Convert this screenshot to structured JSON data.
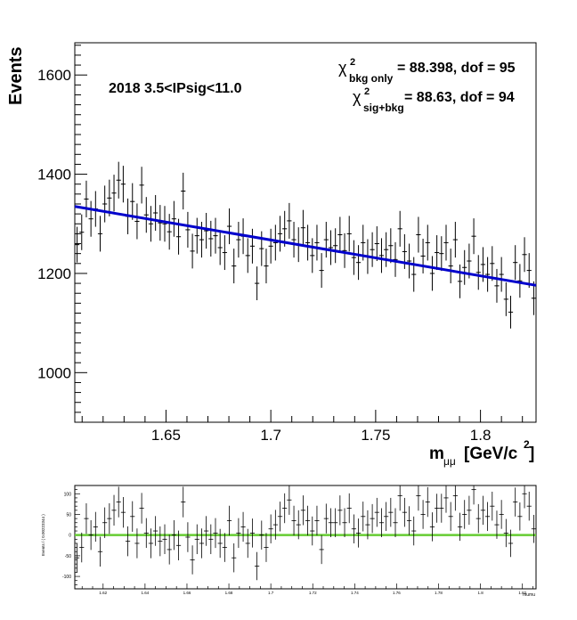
{
  "chart_data": [
    {
      "type": "scatter",
      "title": "2018 3.5<IPsig<11.0",
      "ylabel": "Events",
      "xlabel_main": "m",
      "xlabel_sub": "μμ",
      "xlabel_unit": "[GeV/c",
      "xlabel_sup": "2",
      "xlabel_end": "]",
      "chi2_bkg": {
        "symbol": "χ",
        "sup": "2",
        "sub": "bkg only",
        "text": "= 88.398, dof = 95"
      },
      "chi2_sig": {
        "symbol": "χ",
        "sup": "2",
        "sub": "sig+bkg",
        "text": "= 88.63, dof = 94"
      },
      "xlim": [
        1.6065,
        1.8265
      ],
      "ylim": [
        900,
        1665
      ],
      "xticks": [
        "1.65",
        "1.7",
        "1.75",
        "1.8"
      ],
      "yticks": [
        "1000",
        "1200",
        "1400",
        "1600"
      ],
      "bin_width": 0.0022,
      "series": [
        {
          "color": "#0000cc",
          "x": [
            1.6076,
            1.6098,
            1.612,
            1.6142,
            1.6164,
            1.6186,
            1.6208,
            1.623,
            1.6252,
            1.6274,
            1.6296,
            1.6318,
            1.634,
            1.6362,
            1.6384,
            1.6406,
            1.6428,
            1.645,
            1.6472,
            1.6494,
            1.6516,
            1.6538,
            1.656,
            1.6582,
            1.6604,
            1.6626,
            1.6648,
            1.667,
            1.6692,
            1.6714,
            1.6736,
            1.6758,
            1.678,
            1.6802,
            1.6824,
            1.6846,
            1.6868,
            1.689,
            1.6912,
            1.6934,
            1.6956,
            1.6978,
            1.7,
            1.7022,
            1.7044,
            1.7066,
            1.7088,
            1.711,
            1.7132,
            1.7154,
            1.7176,
            1.7198,
            1.722,
            1.7242,
            1.7264,
            1.7286,
            1.7308,
            1.733,
            1.7352,
            1.7374,
            1.7396,
            1.7418,
            1.744,
            1.7462,
            1.7484,
            1.7506,
            1.7528,
            1.755,
            1.7572,
            1.7594,
            1.7616,
            1.7638,
            1.766,
            1.7682,
            1.7704,
            1.7726,
            1.7748,
            1.777,
            1.7792,
            1.7814,
            1.7836,
            1.7858,
            1.788,
            1.7902,
            1.7924,
            1.7946,
            1.7968,
            1.799,
            1.8012,
            1.8034,
            1.8056,
            1.8078,
            1.81,
            1.8122,
            1.8144,
            1.8166,
            1.8188,
            1.821,
            1.8232,
            1.8254
          ],
          "y": [
            1258,
            1283,
            1350,
            1310,
            1330,
            1280,
            1340,
            1352,
            1362,
            1388,
            1380,
            1315,
            1345,
            1305,
            1378,
            1318,
            1300,
            1322,
            1302,
            1300,
            1284,
            1310,
            1274,
            1366,
            1288,
            1245,
            1276,
            1268,
            1286,
            1270,
            1276,
            1252,
            1242,
            1295,
            1215,
            1268,
            1275,
            1236,
            1255,
            1180,
            1250,
            1215,
            1255,
            1262,
            1280,
            1290,
            1306,
            1268,
            1258,
            1292,
            1262,
            1236,
            1262,
            1206,
            1268,
            1252,
            1256,
            1278,
            1246,
            1280,
            1232,
            1222,
            1262,
            1234,
            1248,
            1260,
            1236,
            1248,
            1256,
            1228,
            1290,
            1244,
            1225,
            1198,
            1278,
            1235,
            1262,
            1200,
            1242,
            1240,
            1262,
            1215,
            1268,
            1184,
            1212,
            1225,
            1275,
            1202,
            1218,
            1198,
            1220,
            1175,
            1198,
            1148,
            1122,
            1222,
            1185,
            1238,
            1206,
            1150
          ],
          "errors": [
            36,
            36,
            37,
            36,
            36,
            36,
            37,
            37,
            37,
            37,
            37,
            36,
            37,
            36,
            37,
            36,
            36,
            36,
            36,
            36,
            36,
            36,
            36,
            37,
            36,
            35,
            36,
            36,
            36,
            36,
            36,
            35,
            35,
            36,
            35,
            36,
            36,
            35,
            35,
            34,
            35,
            35,
            35,
            36,
            36,
            36,
            36,
            36,
            35,
            36,
            36,
            35,
            36,
            35,
            36,
            35,
            35,
            36,
            35,
            36,
            35,
            35,
            36,
            35,
            35,
            35,
            35,
            35,
            35,
            35,
            36,
            35,
            35,
            35,
            36,
            35,
            36,
            35,
            35,
            35,
            36,
            35,
            36,
            34,
            35,
            35,
            36,
            35,
            35,
            35,
            35,
            34,
            35,
            34,
            33,
            35,
            34,
            35,
            35,
            34
          ],
          "fit_line": {
            "x": [
              1.6065,
              1.8265
            ],
            "y": [
              1335,
              1176
            ]
          }
        }
      ]
    },
    {
      "type": "scatter",
      "ylabel": "Events / ( 0.00223344 )",
      "xlabel": "mumu",
      "xlim": [
        1.6065,
        1.8265
      ],
      "ylim": [
        -130,
        120
      ],
      "yticks": [
        "100",
        "50",
        "0",
        "-50",
        "-100"
      ],
      "xticks": [
        "1.62",
        "1.64",
        "1.66",
        "1.68",
        "1.7",
        "1.72",
        "1.74",
        "1.76",
        "1.78",
        "1.8",
        "1.82"
      ],
      "fit_line_color": "#66cc33",
      "residuals": [
        -55,
        -30,
        40,
        0,
        20,
        -40,
        30,
        40,
        60,
        80,
        55,
        -15,
        45,
        -20,
        65,
        5,
        -20,
        10,
        -15,
        -10,
        -35,
        0,
        -25,
        80,
        -5,
        -60,
        -10,
        -20,
        10,
        -10,
        5,
        -20,
        -30,
        35,
        -55,
        5,
        20,
        -20,
        5,
        -75,
        0,
        -30,
        15,
        25,
        45,
        65,
        85,
        35,
        25,
        60,
        35,
        10,
        35,
        -35,
        40,
        30,
        30,
        60,
        30,
        65,
        15,
        5,
        45,
        25,
        40,
        55,
        30,
        45,
        55,
        30,
        95,
        55,
        35,
        10,
        95,
        50,
        80,
        20,
        65,
        65,
        90,
        45,
        95,
        20,
        50,
        60,
        110,
        40,
        60,
        45,
        70,
        25,
        50,
        5,
        -20,
        80,
        45,
        100,
        70,
        15
      ],
      "residual_errors": [
        36,
        36,
        37,
        36,
        36,
        36,
        37,
        37,
        37,
        37,
        37,
        36,
        37,
        36,
        37,
        36,
        36,
        36,
        36,
        36,
        36,
        36,
        36,
        37,
        36,
        35,
        36,
        36,
        36,
        36,
        36,
        35,
        35,
        36,
        35,
        36,
        36,
        35,
        35,
        34,
        35,
        35,
        35,
        36,
        36,
        36,
        36,
        36,
        35,
        36,
        36,
        35,
        36,
        35,
        36,
        35,
        35,
        36,
        35,
        36,
        35,
        35,
        36,
        35,
        35,
        35,
        35,
        35,
        35,
        35,
        36,
        35,
        35,
        35,
        36,
        35,
        36,
        35,
        35,
        35,
        36,
        35,
        36,
        34,
        35,
        35,
        36,
        35,
        35,
        35,
        35,
        34,
        35,
        34,
        33,
        35,
        34,
        35,
        35,
        34
      ]
    }
  ]
}
